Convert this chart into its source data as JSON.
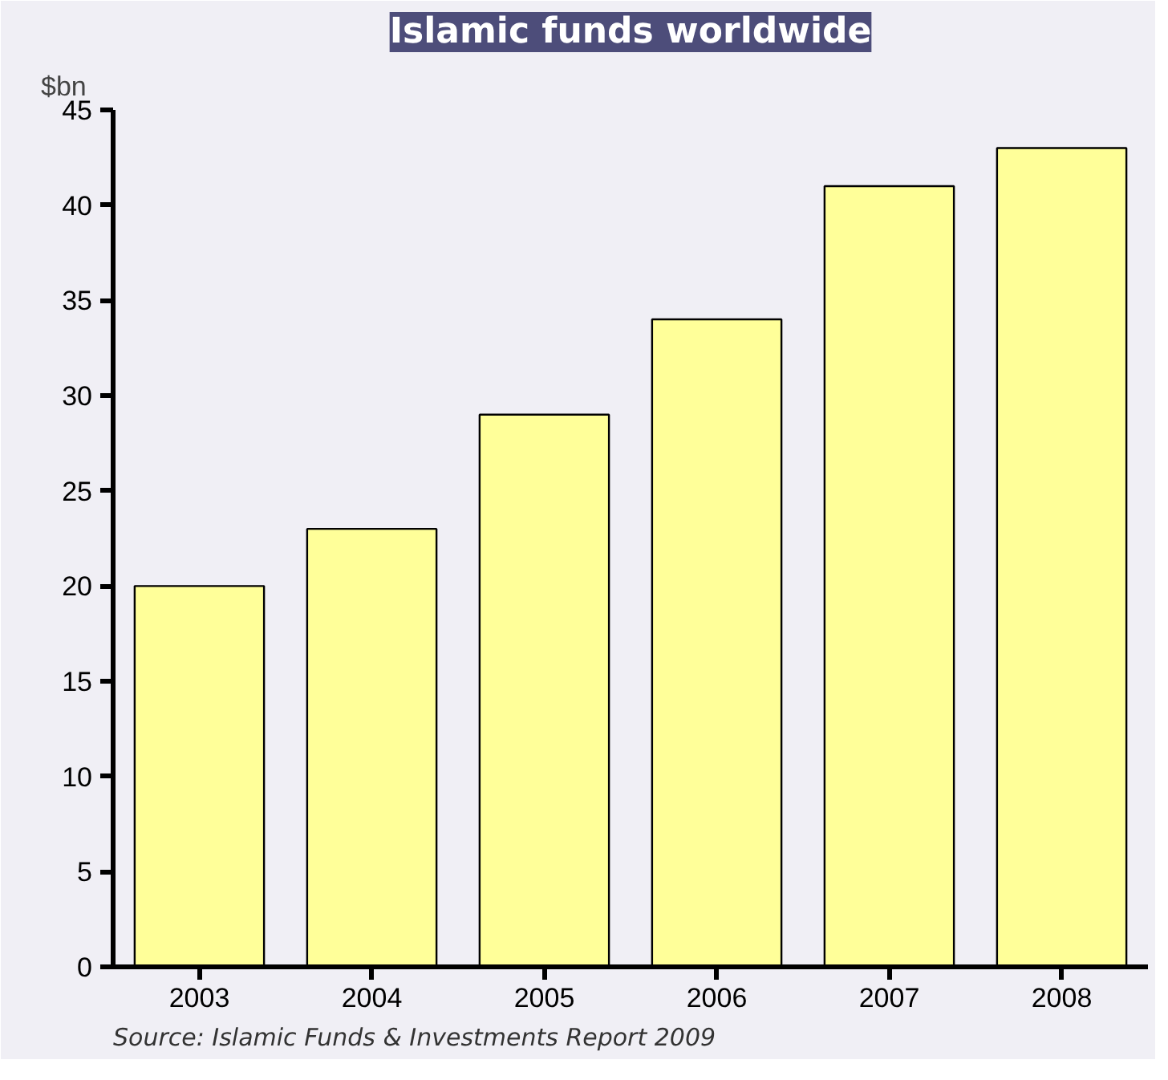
{
  "chart_data": {
    "type": "bar",
    "title": "Islamic funds worldwide",
    "ylabel": "$bn",
    "categories": [
      "2003",
      "2004",
      "2005",
      "2006",
      "2007",
      "2008"
    ],
    "values": [
      20,
      23,
      29,
      34,
      41,
      43
    ],
    "color": "#ffff99",
    "ylim": [
      0,
      45
    ],
    "yticks": [
      0,
      5,
      10,
      15,
      20,
      25,
      30,
      35,
      40,
      45
    ],
    "grid": false,
    "annotations": [
      "Source: Islamic Funds & Investments Report 2009"
    ]
  }
}
